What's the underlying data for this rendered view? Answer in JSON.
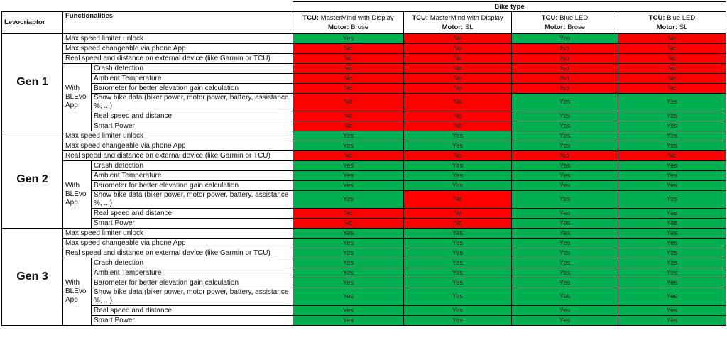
{
  "header": {
    "corner": "Levocriaptor",
    "functionalities": "Functionalities",
    "bike_type": "Bike type",
    "columns": [
      {
        "tcu_label": "TCU:",
        "tcu": "MasterMind with Display",
        "motor_label": "Motor:",
        "motor": "Brose"
      },
      {
        "tcu_label": "TCU:",
        "tcu": "MasterMind with Display",
        "motor_label": "Motor:",
        "motor": "SL"
      },
      {
        "tcu_label": "TCU:",
        "tcu": "Blue LED",
        "motor_label": "Motor:",
        "motor": "Brose"
      },
      {
        "tcu_label": "TCU:",
        "tcu": "Blue LED",
        "motor_label": "Motor:",
        "motor": "SL"
      }
    ]
  },
  "cell_colors": {
    "Yes": "#00b050",
    "No": "#ff0000"
  },
  "generations": [
    {
      "name": "Gen 1",
      "subgroup": "With BLEvo App",
      "rows": [
        {
          "feature": "Max speed limiter unlock",
          "values": [
            "Yes",
            "No",
            "Yes",
            "No"
          ]
        },
        {
          "feature": "Max speed changeable via phone App",
          "values": [
            "No",
            "No",
            "No",
            "No"
          ]
        },
        {
          "feature": "Real speed and distance on external device (like Garmin or TCU)",
          "values": [
            "No",
            "No",
            "No",
            "No"
          ]
        }
      ],
      "app_rows": [
        {
          "feature": "Crash detection",
          "values": [
            "No",
            "No",
            "No",
            "No"
          ]
        },
        {
          "feature": "Ambient Temperature",
          "values": [
            "No",
            "No",
            "No",
            "No"
          ]
        },
        {
          "feature": "Barometer for better elevation gain calculation",
          "values": [
            "No",
            "No",
            "No",
            "No"
          ]
        },
        {
          "feature": "Show bike data (biker power, motor power, battery, assistance %, ...)",
          "values": [
            "No",
            "No",
            "Yes",
            "Yes"
          ]
        },
        {
          "feature": "Real speed and distance",
          "values": [
            "No",
            "No",
            "Yes",
            "Yes"
          ]
        },
        {
          "feature": "Smart Power",
          "values": [
            "No",
            "No",
            "Yes",
            "Yes"
          ]
        }
      ]
    },
    {
      "name": "Gen 2",
      "subgroup": "With BLEvo App",
      "rows": [
        {
          "feature": "Max speed limiter unlock",
          "values": [
            "Yes",
            "Yes",
            "Yes",
            "Yes"
          ]
        },
        {
          "feature": "Max speed changeable via phone App",
          "values": [
            "Yes",
            "Yes",
            "Yes",
            "Yes"
          ]
        },
        {
          "feature": "Real speed and distance on external device (like Garmin or TCU)",
          "values": [
            "No",
            "No",
            "No",
            "No"
          ]
        }
      ],
      "app_rows": [
        {
          "feature": "Crash detection",
          "values": [
            "Yes",
            "Yes",
            "Yes",
            "Yes"
          ]
        },
        {
          "feature": "Ambient Temperature",
          "values": [
            "Yes",
            "Yes",
            "Yes",
            "Yes"
          ]
        },
        {
          "feature": "Barometer for better elevation gain calculation",
          "values": [
            "Yes",
            "Yes",
            "Yes",
            "Yes"
          ]
        },
        {
          "feature": "Show bike data (biker power, motor power, battery, assistance %, ...)",
          "values": [
            "Yes",
            "No",
            "Yes",
            "Yes"
          ]
        },
        {
          "feature": "Real speed and distance",
          "values": [
            "No",
            "No",
            "Yes",
            "Yes"
          ]
        },
        {
          "feature": "Smart Power",
          "values": [
            "No",
            "No",
            "Yes",
            "Yes"
          ]
        }
      ]
    },
    {
      "name": "Gen 3",
      "subgroup": "With BLEvo App",
      "rows": [
        {
          "feature": "Max speed limiter unlock",
          "values": [
            "Yes",
            "Yes",
            "Yes",
            "Yes"
          ]
        },
        {
          "feature": "Max speed changeable via phone App",
          "values": [
            "Yes",
            "Yes",
            "Yes",
            "Yes"
          ]
        },
        {
          "feature": "Real speed and distance on external device (like Garmin or TCU)",
          "values": [
            "Yes",
            "Yes",
            "Yes",
            "Yes"
          ]
        }
      ],
      "app_rows": [
        {
          "feature": "Crash detection",
          "values": [
            "Yes",
            "Yes",
            "Yes",
            "Yes"
          ]
        },
        {
          "feature": "Ambient Temperature",
          "values": [
            "Yes",
            "Yes",
            "Yes",
            "Yes"
          ]
        },
        {
          "feature": "Barometer for better elevation gain calculation",
          "values": [
            "Yes",
            "Yes",
            "Yes",
            "Yes"
          ]
        },
        {
          "feature": "Show bike data (biker power, motor power, battery, assistance %, ...)",
          "values": [
            "Yes",
            "Yes",
            "Yes",
            "Yes"
          ]
        },
        {
          "feature": "Real speed and distance",
          "values": [
            "Yes",
            "Yes",
            "Yes",
            "Yes"
          ]
        },
        {
          "feature": "Smart Power",
          "values": [
            "Yes",
            "Yes",
            "Yes",
            "Yes"
          ]
        }
      ]
    }
  ]
}
